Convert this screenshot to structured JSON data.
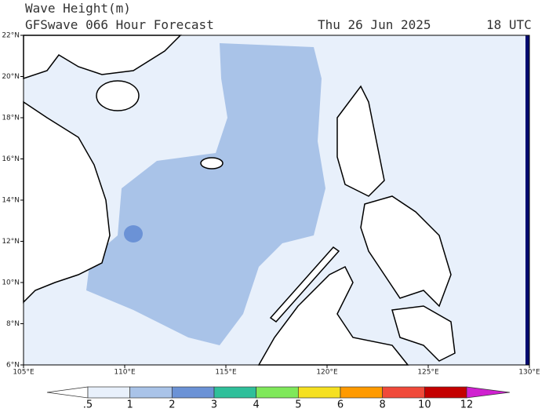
{
  "header": {
    "title": "Wave Height(m)",
    "subtitle": "GFSwave 066 Hour Forecast",
    "date": "Thu 26 Jun 2025",
    "time": "18 UTC"
  },
  "map": {
    "lonlim": [
      105,
      130
    ],
    "latlim": [
      6,
      22
    ],
    "lon_ticks": [
      {
        "value": 105,
        "label": "105°E"
      },
      {
        "value": 110,
        "label": "110°E"
      },
      {
        "value": 115,
        "label": "115°E"
      },
      {
        "value": 120,
        "label": "120°E"
      },
      {
        "value": 125,
        "label": "125°E"
      },
      {
        "value": 130,
        "label": "130°E"
      }
    ],
    "lat_ticks": [
      {
        "value": 6,
        "label": "6°N"
      },
      {
        "value": 8,
        "label": "8°N"
      },
      {
        "value": 10,
        "label": "10°N"
      },
      {
        "value": 12,
        "label": "12°N"
      },
      {
        "value": 14,
        "label": "14°N"
      },
      {
        "value": 16,
        "label": "16°N"
      },
      {
        "value": 18,
        "label": "18°N"
      },
      {
        "value": 20,
        "label": "20°N"
      },
      {
        "value": 22,
        "label": "22°N"
      }
    ]
  },
  "colorbar": {
    "levels": [
      {
        "value": 0.5,
        "label": ".5"
      },
      1,
      2,
      3,
      4,
      5,
      6,
      8,
      10,
      12
    ],
    "colors": [
      "#ffffff",
      "#e8f0fb",
      "#a9c3e8",
      "#6b92d6",
      "#2fbf9a",
      "#7fe85a",
      "#f5e020",
      "#ff9a00",
      "#f04a3a",
      "#c40000",
      "#d020d0"
    ]
  }
}
